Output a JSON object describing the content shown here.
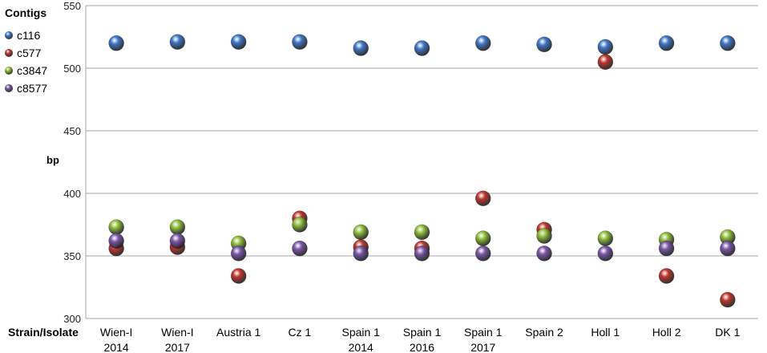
{
  "chart_data": {
    "type": "scatter",
    "legend_title": "Contigs",
    "legend_position": "top-left",
    "ylabel": "bp",
    "xlabel": "Strain/Isolate",
    "ylim": [
      300,
      550
    ],
    "y_ticks": [
      300,
      350,
      400,
      450,
      500,
      550
    ],
    "grid": true,
    "categories": [
      [
        "Wien-I",
        "2014"
      ],
      [
        "Wien-I",
        "2017"
      ],
      [
        "Austria 1"
      ],
      [
        "Cz 1"
      ],
      [
        "Spain 1",
        "2014"
      ],
      [
        "Spain 1",
        "2016"
      ],
      [
        "Spain 1",
        "2017"
      ],
      [
        "Spain 2"
      ],
      [
        "Holl 1"
      ],
      [
        "Holl 2"
      ],
      [
        "DK 1"
      ]
    ],
    "series": [
      {
        "name": "c116",
        "color": "#3f78c8",
        "values": [
          520,
          521,
          521,
          521,
          516,
          516,
          520,
          519,
          517,
          520,
          520
        ]
      },
      {
        "name": "c577",
        "color": "#c0362c",
        "values": [
          356,
          357,
          334,
          380,
          357,
          356,
          396,
          371,
          505,
          334,
          315
        ]
      },
      {
        "name": "c3847",
        "color": "#8fbf3a",
        "values": [
          373,
          373,
          360,
          375,
          369,
          369,
          364,
          366,
          364,
          363,
          365
        ]
      },
      {
        "name": "c8577",
        "color": "#7a57a8",
        "values": [
          362,
          362,
          352,
          356,
          352,
          352,
          352,
          352,
          352,
          356,
          356
        ]
      }
    ]
  }
}
